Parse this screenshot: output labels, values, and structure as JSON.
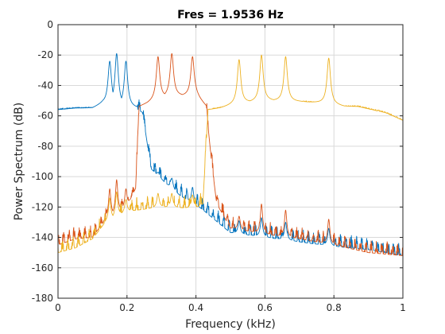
{
  "chart_data": {
    "type": "line",
    "title": "Fres = 1.9536 Hz",
    "xlabel": "Frequency (kHz)",
    "ylabel": "Power Spectrum (dB)",
    "xlim": [
      0,
      1
    ],
    "ylim": [
      -180,
      0
    ],
    "xticks": [
      0,
      0.2,
      0.4,
      0.6,
      0.8,
      1
    ],
    "xtick_labels": [
      "0",
      "0.2",
      "0.4",
      "0.6",
      "0.8",
      "1"
    ],
    "yticks": [
      -180,
      -160,
      -140,
      -120,
      -100,
      -80,
      -60,
      -40,
      -20,
      0
    ],
    "ytick_labels": [
      "-180",
      "-160",
      "-140",
      "-120",
      "-100",
      "-80",
      "-60",
      "-40",
      "-20",
      "0"
    ],
    "grid": true,
    "legend": "none",
    "series": [
      {
        "color": "#0072BD",
        "passband": [
          0.0,
          0.23
        ],
        "peaks": [
          [
            0.15,
            -24
          ],
          [
            0.17,
            -19
          ],
          [
            0.197,
            -24
          ],
          [
            0.29,
            -97
          ],
          [
            0.33,
            -101
          ],
          [
            0.39,
            -107
          ],
          [
            0.525,
            -129
          ],
          [
            0.59,
            -127
          ],
          [
            0.66,
            -130
          ],
          [
            0.785,
            -134
          ]
        ],
        "envelope": {
          "in_band": [
            [
              0.0,
              -56
            ],
            [
              0.05,
              -55
            ],
            [
              0.1,
              -55
            ],
            [
              0.13,
              -52
            ],
            [
              0.23,
              -55
            ]
          ],
          "stop_band": [
            [
              0.23,
              -56
            ],
            [
              0.245,
              -58
            ],
            [
              0.27,
              -95
            ],
            [
              0.3,
              -102
            ],
            [
              0.35,
              -112
            ],
            [
              0.42,
              -122
            ],
            [
              0.5,
              -137
            ],
            [
              0.6,
              -140
            ],
            [
              0.7,
              -143
            ],
            [
              0.8,
              -146
            ],
            [
              0.9,
              -148
            ],
            [
              1.0,
              -152
            ]
          ]
        }
      },
      {
        "color": "#D95319",
        "passband": [
          0.235,
          0.43
        ],
        "peaks": [
          [
            0.15,
            -108
          ],
          [
            0.17,
            -102
          ],
          [
            0.197,
            -108
          ],
          [
            0.29,
            -21
          ],
          [
            0.33,
            -19
          ],
          [
            0.39,
            -21
          ],
          [
            0.525,
            -126
          ],
          [
            0.59,
            -118
          ],
          [
            0.66,
            -122
          ],
          [
            0.785,
            -128
          ]
        ],
        "envelope": {
          "in_band": [
            [
              0.235,
              -54
            ],
            [
              0.26,
              -52
            ],
            [
              0.28,
              -50
            ],
            [
              0.32,
              -47
            ],
            [
              0.36,
              -47
            ],
            [
              0.4,
              -47
            ],
            [
              0.43,
              -54
            ]
          ],
          "stop_band": [
            [
              0.0,
              -145
            ],
            [
              0.05,
              -141
            ],
            [
              0.1,
              -140
            ],
            [
              0.14,
              -128
            ],
            [
              0.2,
              -120
            ],
            [
              0.225,
              -108
            ],
            [
              0.235,
              -56
            ],
            [
              0.43,
              -56
            ],
            [
              0.445,
              -90
            ],
            [
              0.46,
              -118
            ],
            [
              0.5,
              -134
            ],
            [
              0.6,
              -138
            ],
            [
              0.7,
              -141
            ],
            [
              0.8,
              -145
            ],
            [
              0.9,
              -150
            ],
            [
              1.0,
              -152
            ]
          ]
        }
      },
      {
        "color": "#EDB120",
        "passband": [
          0.435,
          1.0
        ],
        "peaks": [
          [
            0.15,
            -114
          ],
          [
            0.17,
            -110
          ],
          [
            0.197,
            -115
          ],
          [
            0.29,
            -111
          ],
          [
            0.33,
            -111
          ],
          [
            0.39,
            -112
          ],
          [
            0.525,
            -23
          ],
          [
            0.59,
            -20
          ],
          [
            0.66,
            -21
          ],
          [
            0.785,
            -22
          ]
        ],
        "envelope": {
          "in_band": [
            [
              0.435,
              -56
            ],
            [
              0.47,
              -55
            ],
            [
              0.52,
              -52
            ],
            [
              0.6,
              -50
            ],
            [
              0.72,
              -51
            ],
            [
              0.78,
              -52
            ],
            [
              0.83,
              -54
            ],
            [
              0.87,
              -54
            ],
            [
              0.95,
              -58
            ],
            [
              1.0,
              -63
            ]
          ],
          "stop_band": [
            [
              0.0,
              -150
            ],
            [
              0.05,
              -147
            ],
            [
              0.1,
              -141
            ],
            [
              0.14,
              -130
            ],
            [
              0.2,
              -123
            ],
            [
              0.3,
              -120
            ],
            [
              0.4,
              -121
            ],
            [
              0.42,
              -118
            ],
            [
              0.435,
              -57
            ]
          ]
        }
      }
    ]
  }
}
